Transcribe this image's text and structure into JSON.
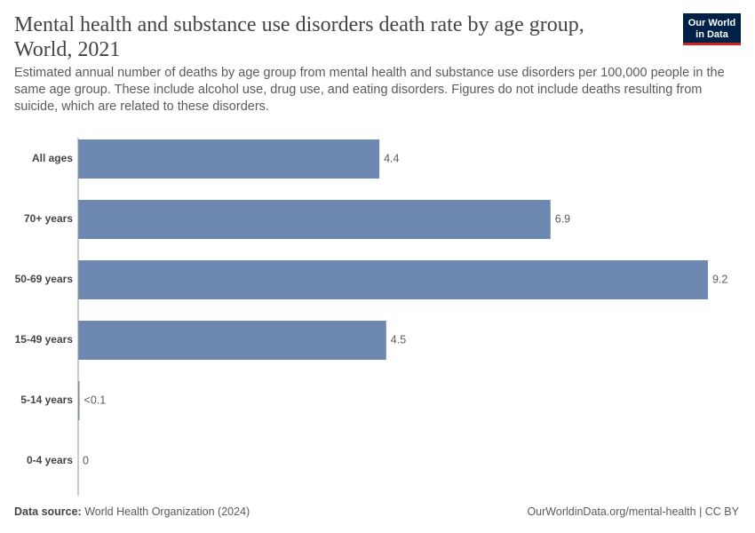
{
  "chart_data": {
    "type": "bar",
    "orientation": "horizontal",
    "title": "Mental health and substance use disorders death rate by age group, World, 2021",
    "subtitle": "Estimated annual number of deaths by age group from mental health and substance use disorders per 100,000 people in the same age group. These include alcohol use, drug use, and eating disorders. Figures do not include deaths resulting from suicide, which are related to these disorders.",
    "categories": [
      "All ages",
      "70+ years",
      "50-69 years",
      "15-49 years",
      "5-14 years",
      "0-4 years"
    ],
    "values": [
      4.4,
      6.9,
      9.2,
      4.5,
      0.02,
      0
    ],
    "value_labels": [
      "4.4",
      "6.9",
      "9.2",
      "4.5",
      "<0.1",
      "0"
    ],
    "color": "#6d88b1"
  },
  "logo": {
    "line1": "Our World",
    "line2": "in Data"
  },
  "footer": {
    "source_label": "Data source:",
    "source": "World Health Organization (2024)",
    "credit": "OurWorldinData.org/mental-health | CC BY"
  }
}
